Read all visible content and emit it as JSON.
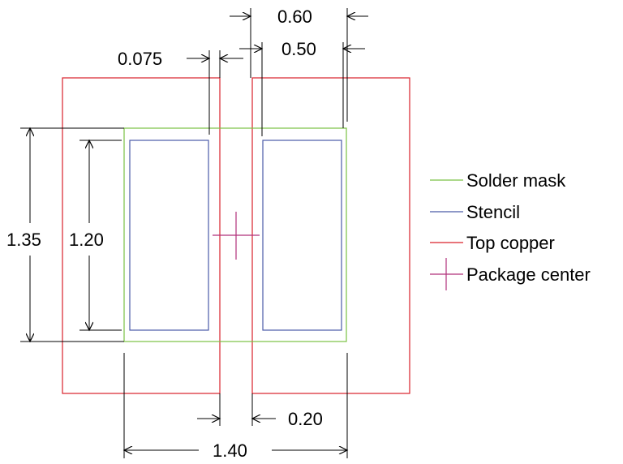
{
  "diagram": {
    "dimensions": {
      "d_0_60": "0.60",
      "d_0_50": "0.50",
      "d_0_075": "0.075",
      "d_1_35": "1.35",
      "d_1_20": "1.20",
      "d_0_20": "0.20",
      "d_1_40": "1.40"
    },
    "legend": {
      "solder_mask": {
        "label": "Solder mask",
        "color": "#7ac143"
      },
      "stencil": {
        "label": "Stencil",
        "color": "#4a5aa8"
      },
      "top_copper": {
        "label": "Top copper",
        "color": "#d9202a"
      },
      "package_center": {
        "label": "Package center",
        "color": "#b0307a"
      }
    },
    "line_color": "#000000"
  }
}
